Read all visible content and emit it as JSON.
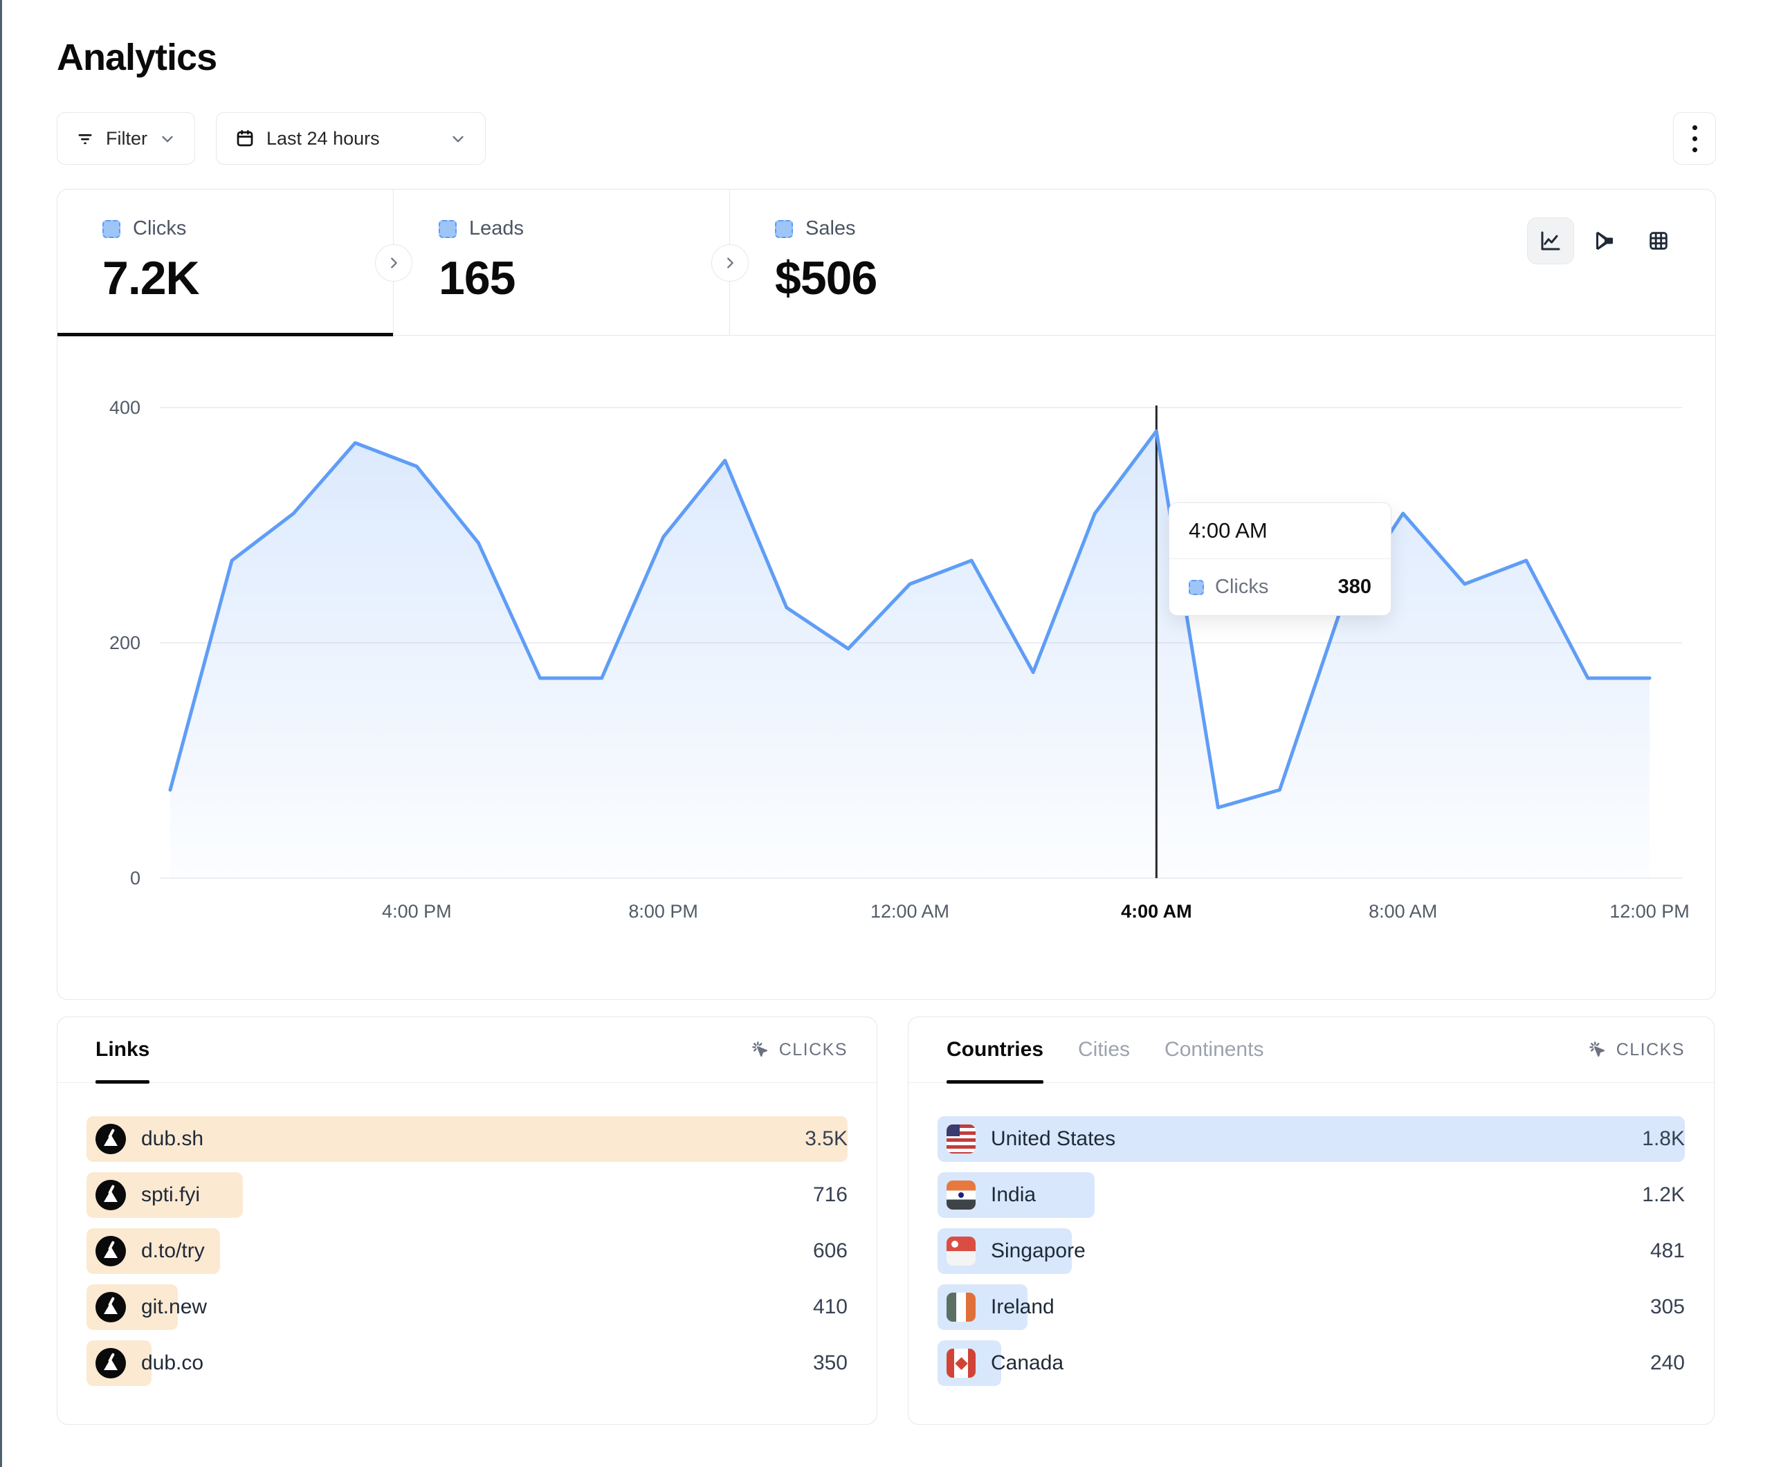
{
  "page": {
    "title": "Analytics"
  },
  "toolbar": {
    "filter_label": "Filter",
    "date_range_label": "Last 24 hours"
  },
  "icons": [
    "filter-icon",
    "calendar-icon",
    "chevron-down-icon",
    "kebab-menu-icon",
    "line-chart-icon",
    "funnel-icon",
    "grid-icon",
    "chevron-right-icon",
    "cursor-click-icon",
    "dub-logo-icon",
    "flag-icon"
  ],
  "stats": {
    "tabs": [
      {
        "label": "Clicks",
        "value": "7.2K",
        "active": true
      },
      {
        "label": "Leads",
        "value": "165",
        "active": false
      },
      {
        "label": "Sales",
        "value": "$506",
        "active": false
      }
    ]
  },
  "chart_data": {
    "type": "area",
    "title": "Clicks over last 24 hours",
    "x": [
      "12:00 PM",
      "1:00 PM",
      "2:00 PM",
      "3:00 PM",
      "4:00 PM",
      "5:00 PM",
      "6:00 PM",
      "7:00 PM",
      "8:00 PM",
      "9:00 PM",
      "10:00 PM",
      "11:00 PM",
      "12:00 AM",
      "1:00 AM",
      "2:00 AM",
      "3:00 AM",
      "4:00 AM",
      "5:00 AM",
      "6:00 AM",
      "7:00 AM",
      "8:00 AM",
      "9:00 AM",
      "10:00 AM",
      "11:00 AM",
      "12:00 PM"
    ],
    "values": [
      75,
      270,
      310,
      370,
      350,
      285,
      170,
      170,
      290,
      355,
      230,
      195,
      250,
      270,
      175,
      310,
      380,
      60,
      75,
      230,
      310,
      250,
      270,
      170,
      170
    ],
    "series_name": "Clicks",
    "ylim": [
      0,
      420
    ],
    "yticks": [
      0,
      200,
      400
    ],
    "x_tick_indices": [
      4,
      8,
      12,
      16,
      20,
      24
    ],
    "x_tick_labels": [
      "4:00 PM",
      "8:00 PM",
      "12:00 AM",
      "4:00 AM",
      "8:00 AM",
      "12:00 PM"
    ],
    "grid": true,
    "line_color": "#5f9df6",
    "highlight_index": 16,
    "tooltip": {
      "title": "4:00 AM",
      "series": "Clicks",
      "value": "380"
    }
  },
  "links_panel": {
    "tab_label": "Links",
    "metric_label": "CLICKS",
    "bar_color": "#fce9d2",
    "rows": [
      {
        "label": "dub.sh",
        "value": "3.5K",
        "bar_percent": 100
      },
      {
        "label": "spti.fyi",
        "value": "716",
        "bar_percent": 20.5
      },
      {
        "label": "d.to/try",
        "value": "606",
        "bar_percent": 17.5
      },
      {
        "label": "git.new",
        "value": "410",
        "bar_percent": 12
      },
      {
        "label": "dub.co",
        "value": "350",
        "bar_percent": 8.5
      }
    ]
  },
  "countries_panel": {
    "tabs": [
      {
        "label": "Countries",
        "active": true
      },
      {
        "label": "Cities",
        "active": false
      },
      {
        "label": "Continents",
        "active": false
      }
    ],
    "metric_label": "CLICKS",
    "bar_color": "#d8e7fb",
    "rows": [
      {
        "label": "United States",
        "flag": "us",
        "value": "1.8K",
        "bar_percent": 100
      },
      {
        "label": "India",
        "flag": "in",
        "value": "1.2K",
        "bar_percent": 21
      },
      {
        "label": "Singapore",
        "flag": "sg",
        "value": "481",
        "bar_percent": 18
      },
      {
        "label": "Ireland",
        "flag": "ie",
        "value": "305",
        "bar_percent": 12
      },
      {
        "label": "Canada",
        "flag": "ca",
        "value": "240",
        "bar_percent": 8.5
      }
    ]
  },
  "colors": {
    "accent_blue": "#5f9df6",
    "legend_fill": "#9ec5f8",
    "link_bar": "#fce9d2",
    "country_bar": "#d8e7fb",
    "border": "#e5e7eb",
    "text_muted": "#6b7280"
  }
}
